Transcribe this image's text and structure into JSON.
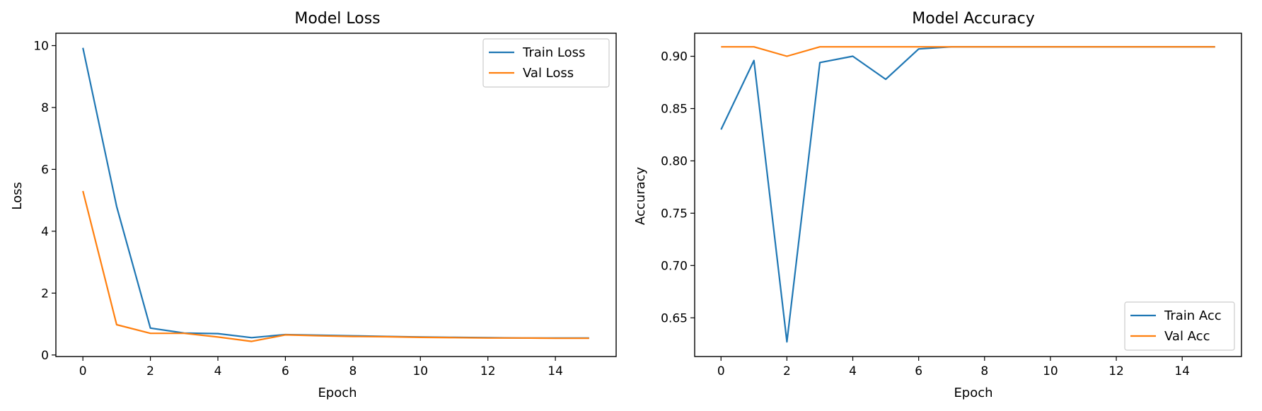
{
  "chart_data": [
    {
      "type": "line",
      "title": "Model Loss",
      "xlabel": "Epoch",
      "ylabel": "Loss",
      "x": [
        0,
        1,
        2,
        3,
        4,
        5,
        6,
        7,
        8,
        9,
        10,
        11,
        12,
        13,
        14,
        15
      ],
      "xlim": [
        -0.8,
        15.8
      ],
      "ylim": [
        -0.05,
        10.4
      ],
      "xticks": [
        0,
        2,
        4,
        6,
        8,
        10,
        12,
        14
      ],
      "xtick_labels": [
        "0",
        "2",
        "4",
        "6",
        "8",
        "10",
        "12",
        "14"
      ],
      "yticks": [
        0,
        2,
        4,
        6,
        8,
        10
      ],
      "ytick_labels": [
        "0",
        "2",
        "4",
        "6",
        "8",
        "10"
      ],
      "grid": false,
      "legend_position": "top-right",
      "series": [
        {
          "name": "Train Loss",
          "color": "#1f77b4",
          "values": [
            9.93,
            4.8,
            0.87,
            0.71,
            0.69,
            0.56,
            0.66,
            0.64,
            0.62,
            0.6,
            0.58,
            0.57,
            0.56,
            0.55,
            0.55,
            0.55
          ]
        },
        {
          "name": "Val Loss",
          "color": "#ff7f0e",
          "values": [
            5.3,
            0.98,
            0.7,
            0.7,
            0.58,
            0.44,
            0.65,
            0.62,
            0.6,
            0.59,
            0.57,
            0.56,
            0.55,
            0.55,
            0.54,
            0.54
          ]
        }
      ]
    },
    {
      "type": "line",
      "title": "Model Accuracy",
      "xlabel": "Epoch",
      "ylabel": "Accuracy",
      "x": [
        0,
        1,
        2,
        3,
        4,
        5,
        6,
        7,
        8,
        9,
        10,
        11,
        12,
        13,
        14,
        15
      ],
      "xlim": [
        -0.8,
        15.8
      ],
      "ylim": [
        0.613,
        0.922
      ],
      "xticks": [
        0,
        2,
        4,
        6,
        8,
        10,
        12,
        14
      ],
      "xtick_labels": [
        "0",
        "2",
        "4",
        "6",
        "8",
        "10",
        "12",
        "14"
      ],
      "yticks": [
        0.65,
        0.7,
        0.75,
        0.8,
        0.85,
        0.9
      ],
      "ytick_labels": [
        "0.65",
        "0.70",
        "0.75",
        "0.80",
        "0.85",
        "0.90"
      ],
      "grid": false,
      "legend_position": "bottom-right",
      "series": [
        {
          "name": "Train Acc",
          "color": "#1f77b4",
          "values": [
            0.83,
            0.896,
            0.627,
            0.894,
            0.9,
            0.878,
            0.907,
            0.909,
            0.909,
            0.909,
            0.909,
            0.909,
            0.909,
            0.909,
            0.909,
            0.909
          ]
        },
        {
          "name": "Val Acc",
          "color": "#ff7f0e",
          "values": [
            0.909,
            0.909,
            0.9,
            0.909,
            0.909,
            0.909,
            0.909,
            0.909,
            0.909,
            0.909,
            0.909,
            0.909,
            0.909,
            0.909,
            0.909,
            0.909
          ]
        }
      ]
    }
  ]
}
